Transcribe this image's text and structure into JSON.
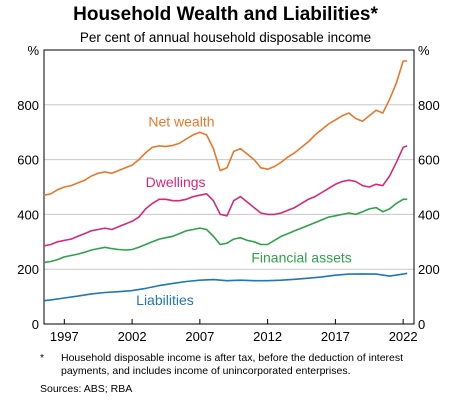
{
  "chart_data": {
    "type": "line",
    "title": "Household Wealth and Liabilities*",
    "subtitle": "Per cent of annual household disposable income",
    "ylabel_left": "%",
    "ylabel_right": "%",
    "ylim": [
      0,
      1000
    ],
    "yticks": [
      0,
      200,
      400,
      600,
      800
    ],
    "xlim": [
      1995.5,
      2022.8
    ],
    "xticks": [
      1997,
      2002,
      2007,
      2012,
      2017,
      2022
    ],
    "grid": "horizontal",
    "legend": "inline labels",
    "series": [
      {
        "name": "Net wealth",
        "color": "#e8782a",
        "x": [
          1995.5,
          1996,
          1996.5,
          1997,
          1997.5,
          1998,
          1998.5,
          1999,
          1999.5,
          2000,
          2000.5,
          2001,
          2001.5,
          2002,
          2002.5,
          2003,
          2003.5,
          2004,
          2004.5,
          2005,
          2005.5,
          2006,
          2006.5,
          2007,
          2007.5,
          2008,
          2008.5,
          2009,
          2009.5,
          2010,
          2010.5,
          2011,
          2011.5,
          2012,
          2012.5,
          2013,
          2013.5,
          2014,
          2014.5,
          2015,
          2015.5,
          2016,
          2016.5,
          2017,
          2017.5,
          2018,
          2018.5,
          2019,
          2019.5,
          2020,
          2020.5,
          2021,
          2021.5,
          2022,
          2022.3
        ],
        "y": [
          470,
          475,
          490,
          500,
          505,
          515,
          525,
          540,
          550,
          555,
          550,
          560,
          570,
          580,
          600,
          625,
          645,
          650,
          648,
          652,
          660,
          675,
          690,
          700,
          690,
          640,
          560,
          570,
          630,
          640,
          620,
          600,
          570,
          565,
          575,
          590,
          610,
          625,
          645,
          665,
          690,
          710,
          730,
          745,
          760,
          770,
          750,
          740,
          760,
          780,
          770,
          820,
          880,
          960,
          960
        ]
      },
      {
        "name": "Dwellings",
        "color": "#d6287a",
        "x": [
          1995.5,
          1996,
          1996.5,
          1997,
          1997.5,
          1998,
          1998.5,
          1999,
          1999.5,
          2000,
          2000.5,
          2001,
          2001.5,
          2002,
          2002.5,
          2003,
          2003.5,
          2004,
          2004.5,
          2005,
          2005.5,
          2006,
          2006.5,
          2007,
          2007.5,
          2008,
          2008.5,
          2009,
          2009.5,
          2010,
          2010.5,
          2011,
          2011.5,
          2012,
          2012.5,
          2013,
          2013.5,
          2014,
          2014.5,
          2015,
          2015.5,
          2016,
          2016.5,
          2017,
          2017.5,
          2018,
          2018.5,
          2019,
          2019.5,
          2020,
          2020.5,
          2021,
          2021.5,
          2022,
          2022.3
        ],
        "y": [
          285,
          290,
          300,
          305,
          310,
          320,
          330,
          340,
          345,
          350,
          345,
          355,
          365,
          375,
          390,
          420,
          440,
          455,
          455,
          450,
          450,
          455,
          465,
          470,
          475,
          450,
          400,
          395,
          450,
          465,
          445,
          425,
          405,
          400,
          400,
          405,
          415,
          425,
          440,
          455,
          465,
          480,
          495,
          510,
          520,
          525,
          520,
          505,
          500,
          510,
          505,
          540,
          590,
          645,
          650
        ]
      },
      {
        "name": "Financial assets",
        "color": "#2ea24a",
        "x": [
          1995.5,
          1996,
          1996.5,
          1997,
          1997.5,
          1998,
          1998.5,
          1999,
          1999.5,
          2000,
          2000.5,
          2001,
          2001.5,
          2002,
          2002.5,
          2003,
          2003.5,
          2004,
          2004.5,
          2005,
          2005.5,
          2006,
          2006.5,
          2007,
          2007.5,
          2008,
          2008.5,
          2009,
          2009.5,
          2010,
          2010.5,
          2011,
          2011.5,
          2012,
          2012.5,
          2013,
          2013.5,
          2014,
          2014.5,
          2015,
          2015.5,
          2016,
          2016.5,
          2017,
          2017.5,
          2018,
          2018.5,
          2019,
          2019.5,
          2020,
          2020.5,
          2021,
          2021.5,
          2022,
          2022.3
        ],
        "y": [
          225,
          228,
          235,
          245,
          250,
          255,
          262,
          270,
          275,
          280,
          275,
          272,
          270,
          272,
          280,
          290,
          300,
          310,
          315,
          320,
          330,
          340,
          345,
          350,
          345,
          320,
          290,
          295,
          310,
          315,
          305,
          300,
          290,
          290,
          305,
          320,
          330,
          340,
          350,
          360,
          370,
          380,
          390,
          395,
          400,
          405,
          400,
          410,
          420,
          425,
          410,
          420,
          440,
          455,
          455
        ]
      },
      {
        "name": "Liabilities",
        "color": "#1f77b4",
        "x": [
          1995.5,
          1996,
          1997,
          1998,
          1999,
          2000,
          2001,
          2002,
          2003,
          2004,
          2005,
          2006,
          2007,
          2008,
          2009,
          2010,
          2011,
          2012,
          2013,
          2014,
          2015,
          2016,
          2017,
          2018,
          2019,
          2020,
          2021,
          2022,
          2022.3
        ],
        "y": [
          85,
          88,
          95,
          102,
          110,
          115,
          118,
          122,
          130,
          140,
          148,
          155,
          160,
          162,
          158,
          160,
          158,
          158,
          160,
          163,
          167,
          172,
          178,
          182,
          183,
          182,
          175,
          182,
          185
        ]
      }
    ],
    "annotations": [
      {
        "series": "Net wealth",
        "text": "Net wealth",
        "x": 2003.2,
        "y": 720
      },
      {
        "series": "Dwellings",
        "text": "Dwellings",
        "x": 2003.0,
        "y": 500
      },
      {
        "series": "Financial assets",
        "text": "Financial assets",
        "x": 2010.8,
        "y": 225
      },
      {
        "series": "Liabilities",
        "text": "Liabilities",
        "x": 2002.3,
        "y": 70
      }
    ]
  },
  "notes": {
    "mark": "*",
    "text": "Household disposable income is after tax, before the deduction of interest payments, and includes income of unincorporated enterprises.",
    "sources": "Sources: ABS; RBA"
  }
}
